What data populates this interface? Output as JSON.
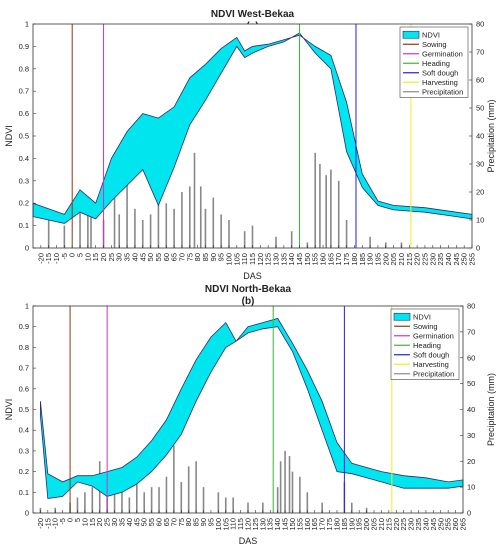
{
  "chart_data": [
    {
      "type": "area",
      "title": "NDVI West-Bekaa",
      "subtitle": "(a)",
      "xlabel": "DAS",
      "ylabel": "NDVI",
      "y2label": "Precipitation (mm)",
      "xlim": [
        -25,
        255
      ],
      "ylim": [
        0,
        1
      ],
      "y2lim": [
        0,
        80
      ],
      "xticks": [
        -20,
        -15,
        -10,
        -5,
        0,
        5,
        10,
        15,
        20,
        25,
        30,
        35,
        40,
        45,
        50,
        55,
        60,
        65,
        70,
        75,
        80,
        85,
        90,
        95,
        100,
        105,
        110,
        115,
        120,
        125,
        130,
        135,
        140,
        145,
        150,
        155,
        160,
        165,
        170,
        175,
        180,
        185,
        190,
        195,
        200,
        205,
        210,
        215,
        220,
        225,
        230,
        235,
        240,
        245,
        250,
        255
      ],
      "yticks": [
        0,
        0.1,
        0.2,
        0.3,
        0.4,
        0.5,
        0.6,
        0.7,
        0.8,
        0.9,
        1
      ],
      "y2ticks": [
        0,
        10,
        20,
        30,
        40,
        50,
        60,
        70,
        80
      ],
      "grid": false,
      "legend": {
        "position": "top-right",
        "entries": [
          "NDVI",
          "Sowing",
          "Germination",
          "Heading",
          "Soft dough",
          "Harvesting",
          "Precipitation"
        ]
      },
      "colors": {
        "ndvi_fill": "#00e5ee",
        "ndvi_edge": "#2a2a72",
        "sowing": "#8b3a0f",
        "germination": "#cc33cc",
        "heading": "#33bb33",
        "soft_dough": "#2222dd",
        "harvesting": "#eeee22",
        "precipitation": "#888888"
      },
      "x": [
        -25,
        -5,
        5,
        15,
        25,
        35,
        45,
        55,
        65,
        75,
        85,
        95,
        105,
        110,
        115,
        125,
        135,
        145,
        155,
        165,
        175,
        185,
        195,
        205,
        225,
        245,
        255
      ],
      "ndvi_upper": [
        0.2,
        0.15,
        0.26,
        0.2,
        0.4,
        0.52,
        0.6,
        0.58,
        0.63,
        0.76,
        0.82,
        0.89,
        0.94,
        0.88,
        0.9,
        0.91,
        0.93,
        0.95,
        0.9,
        0.86,
        0.65,
        0.33,
        0.21,
        0.19,
        0.18,
        0.16,
        0.15
      ],
      "ndvi_lower": [
        0.14,
        0.11,
        0.16,
        0.13,
        0.21,
        0.28,
        0.35,
        0.19,
        0.36,
        0.55,
        0.66,
        0.78,
        0.9,
        0.85,
        0.87,
        0.9,
        0.92,
        0.96,
        0.87,
        0.8,
        0.43,
        0.27,
        0.19,
        0.17,
        0.16,
        0.14,
        0.13
      ],
      "events": {
        "sowing": 0,
        "germination": 20,
        "heading": 145,
        "soft_dough": 181,
        "harvesting": 216
      },
      "precip_x": [
        -15,
        -5,
        5,
        10,
        12,
        20,
        27,
        30,
        35,
        40,
        45,
        50,
        55,
        60,
        65,
        70,
        75,
        78,
        82,
        85,
        90,
        95,
        100,
        110,
        115,
        130,
        140,
        150,
        155,
        158,
        162,
        165,
        170,
        175,
        190,
        200,
        210
      ],
      "precip_y": [
        12,
        8,
        16,
        18,
        15,
        10,
        22,
        12,
        25,
        14,
        10,
        12,
        18,
        16,
        14,
        20,
        22,
        34,
        22,
        14,
        18,
        12,
        10,
        6,
        8,
        4,
        6,
        2,
        34,
        30,
        26,
        28,
        24,
        10,
        4,
        2,
        2
      ]
    },
    {
      "type": "area",
      "title": "NDVI North-Bekaa",
      "subtitle": "(b)",
      "xlabel": "DAS",
      "ylabel": "NDVI",
      "y2label": "Precipitation (mm)",
      "xlim": [
        -25,
        265
      ],
      "ylim": [
        0,
        1
      ],
      "y2lim": [
        0,
        80
      ],
      "xticks": [
        -20,
        -15,
        -10,
        -5,
        0,
        5,
        10,
        15,
        20,
        25,
        30,
        35,
        40,
        45,
        50,
        55,
        60,
        65,
        70,
        75,
        80,
        85,
        90,
        95,
        100,
        105,
        110,
        115,
        120,
        125,
        130,
        135,
        140,
        145,
        150,
        155,
        160,
        165,
        170,
        175,
        180,
        185,
        190,
        195,
        200,
        205,
        210,
        215,
        220,
        225,
        230,
        235,
        240,
        245,
        250,
        255,
        260,
        265
      ],
      "yticks": [
        0,
        0.1,
        0.2,
        0.3,
        0.4,
        0.5,
        0.6,
        0.7,
        0.8,
        0.9,
        1
      ],
      "y2ticks": [
        0,
        10,
        20,
        30,
        40,
        50,
        60,
        70,
        80
      ],
      "grid": false,
      "legend": {
        "position": "top-right",
        "entries": [
          "NDVI",
          "Sowing",
          "Germination",
          "Heading",
          "Soft dough",
          "Harvesting",
          "Precipitation"
        ]
      },
      "colors": {
        "ndvi_fill": "#00e5ee",
        "ndvi_edge": "#2a2a72",
        "sowing": "#8b3a0f",
        "germination": "#cc33cc",
        "heading": "#33bb33",
        "soft_dough": "#2222dd",
        "harvesting": "#eeee22",
        "precipitation": "#888888"
      },
      "x": [
        -20,
        -15,
        -5,
        5,
        15,
        25,
        35,
        45,
        55,
        65,
        75,
        85,
        95,
        105,
        112,
        120,
        130,
        140,
        150,
        160,
        170,
        180,
        190,
        200,
        210,
        225,
        240,
        255,
        265
      ],
      "ndvi_upper": [
        0.54,
        0.19,
        0.15,
        0.18,
        0.18,
        0.2,
        0.22,
        0.27,
        0.35,
        0.45,
        0.6,
        0.74,
        0.85,
        0.92,
        0.83,
        0.9,
        0.92,
        0.94,
        0.82,
        0.69,
        0.54,
        0.34,
        0.24,
        0.22,
        0.2,
        0.18,
        0.17,
        0.15,
        0.16
      ],
      "ndvi_lower": [
        0.47,
        0.07,
        0.08,
        0.15,
        0.13,
        0.08,
        0.1,
        0.14,
        0.2,
        0.28,
        0.38,
        0.54,
        0.68,
        0.8,
        0.83,
        0.87,
        0.89,
        0.9,
        0.78,
        0.6,
        0.4,
        0.2,
        0.19,
        0.17,
        0.15,
        0.12,
        0.12,
        0.12,
        0.13
      ],
      "events": {
        "sowing": 0,
        "germination": 25,
        "heading": 137,
        "soft_dough": 185,
        "harvesting": 217
      },
      "precip_x": [
        -20,
        -10,
        0,
        5,
        10,
        15,
        20,
        25,
        30,
        35,
        40,
        45,
        50,
        55,
        60,
        65,
        70,
        75,
        80,
        85,
        90,
        100,
        105,
        110,
        120,
        130,
        140,
        142,
        145,
        148,
        150,
        155,
        160,
        170,
        185,
        190,
        200
      ],
      "precip_y": [
        2,
        2,
        4,
        6,
        8,
        10,
        20,
        8,
        10,
        14,
        6,
        12,
        8,
        10,
        10,
        14,
        26,
        12,
        18,
        20,
        10,
        8,
        6,
        6,
        4,
        4,
        10,
        20,
        24,
        22,
        16,
        14,
        8,
        4,
        12,
        4,
        2
      ]
    }
  ]
}
